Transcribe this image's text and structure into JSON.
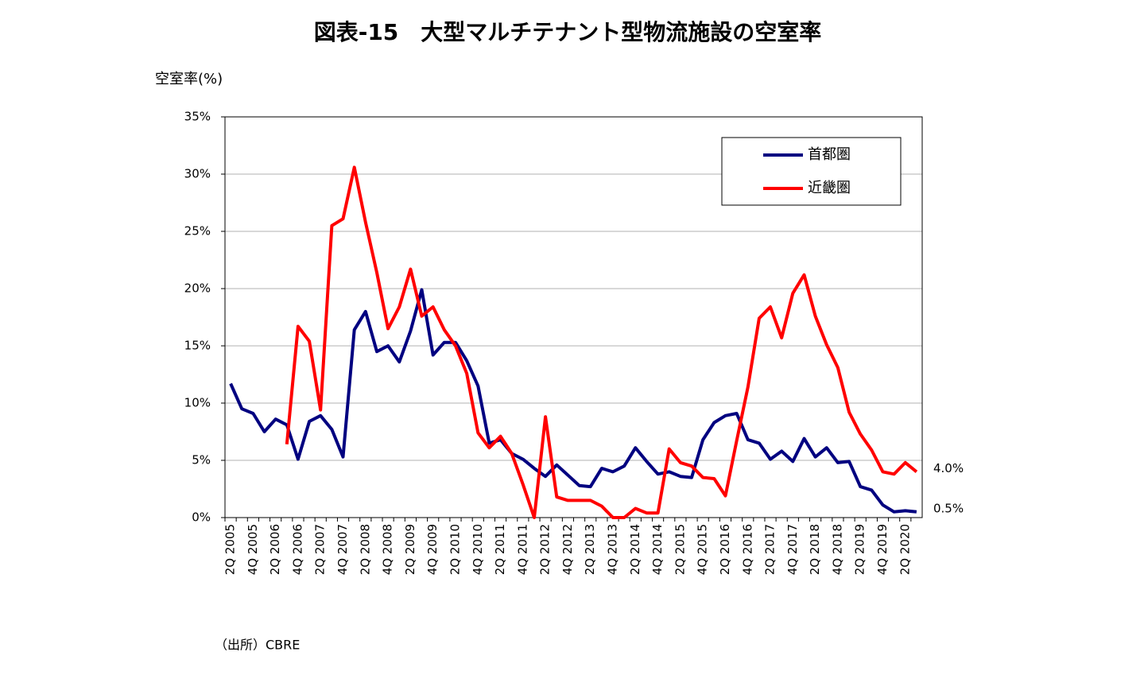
{
  "chart_data": {
    "type": "line",
    "title": "図表-15　大型マルチテナント型物流施設の空室率",
    "y_label": "空室率(%)",
    "source": "（出所）CBRE",
    "categories": [
      "2Q 2005",
      null,
      "4Q 2005",
      null,
      "2Q 2006",
      null,
      "4Q 2006",
      null,
      "2Q 2007",
      null,
      "4Q 2007",
      null,
      "2Q 2008",
      null,
      "4Q 2008",
      null,
      "2Q 2009",
      null,
      "4Q 2009",
      null,
      "2Q 2010",
      null,
      "4Q 2010",
      null,
      "2Q 2011",
      null,
      "4Q 2011",
      null,
      "2Q 2012",
      null,
      "4Q 2012",
      null,
      "2Q 2013",
      null,
      "4Q 2013",
      null,
      "2Q 2014",
      null,
      "4Q 2014",
      null,
      "2Q 2015",
      null,
      "4Q 2015",
      null,
      "2Q 2016",
      null,
      "4Q 2016",
      null,
      "2Q 2017",
      null,
      "4Q 2017",
      null,
      "2Q 2018",
      null,
      "4Q 2018",
      null,
      "2Q 2019",
      null,
      "4Q 2019",
      null,
      "2Q 2020",
      null
    ],
    "series": [
      {
        "name": "首都圏",
        "color": "#000080",
        "values": [
          11.7,
          9.5,
          9.1,
          7.5,
          8.6,
          8.1,
          5.1,
          8.4,
          8.9,
          7.7,
          5.3,
          16.4,
          18.0,
          14.5,
          15.0,
          13.6,
          16.3,
          19.9,
          14.2,
          15.3,
          15.3,
          13.7,
          11.5,
          6.5,
          6.8,
          5.6,
          5.1,
          4.3,
          3.6,
          4.6,
          3.7,
          2.8,
          2.7,
          4.3,
          4.0,
          4.5,
          6.1,
          4.9,
          3.8,
          4.0,
          3.6,
          3.5,
          6.8,
          8.3,
          8.9,
          9.1,
          6.8,
          6.5,
          5.1,
          5.8,
          4.9,
          6.9,
          5.3,
          6.1,
          4.8,
          4.9,
          2.7,
          2.4,
          1.1,
          0.5,
          0.6,
          0.5
        ],
        "value_labels": [
          null,
          null,
          null,
          null,
          null,
          null,
          null,
          null,
          null,
          null,
          null,
          null,
          null,
          null,
          null,
          null,
          null,
          null,
          null,
          null,
          null,
          null,
          null,
          null,
          null,
          null,
          null,
          null,
          null,
          null,
          null,
          null,
          null,
          null,
          null,
          null,
          null,
          null,
          null,
          null,
          null,
          null,
          null,
          null,
          null,
          null,
          null,
          null,
          null,
          null,
          null,
          null,
          null,
          null,
          null,
          null,
          null,
          null,
          null,
          null,
          null,
          "0.5%"
        ]
      },
      {
        "name": "近畿圏",
        "color": "#ff0000",
        "values": [
          null,
          null,
          null,
          null,
          null,
          6.4,
          16.7,
          15.4,
          9.4,
          25.5,
          26.1,
          30.6,
          25.8,
          21.4,
          16.5,
          18.4,
          21.7,
          17.6,
          18.4,
          16.4,
          15.0,
          12.6,
          7.4,
          6.1,
          7.1,
          5.6,
          2.9,
          0.0,
          8.8,
          1.8,
          1.5,
          1.5,
          1.5,
          1.0,
          0.0,
          0.0,
          0.8,
          0.4,
          0.4,
          6.0,
          4.8,
          4.5,
          3.5,
          3.4,
          1.9,
          6.7,
          11.4,
          17.4,
          18.4,
          15.7,
          19.6,
          21.2,
          17.6,
          15.1,
          13.1,
          9.2,
          7.3,
          5.9,
          4.0,
          3.8,
          4.8,
          4.0
        ],
        "value_labels": [
          null,
          null,
          null,
          null,
          null,
          null,
          null,
          null,
          null,
          null,
          null,
          null,
          null,
          null,
          null,
          null,
          null,
          null,
          null,
          null,
          null,
          null,
          null,
          null,
          null,
          null,
          null,
          null,
          null,
          null,
          null,
          null,
          null,
          null,
          null,
          null,
          null,
          null,
          null,
          null,
          null,
          null,
          null,
          null,
          null,
          null,
          null,
          null,
          null,
          null,
          null,
          null,
          null,
          null,
          null,
          null,
          null,
          null,
          null,
          null,
          null,
          "4.0%"
        ]
      }
    ],
    "ylim": [
      0,
      35
    ],
    "yticks": [
      {
        "value": 0,
        "label": "0%"
      },
      {
        "value": 5,
        "label": "5%"
      },
      {
        "value": 10,
        "label": "10%"
      },
      {
        "value": 15,
        "label": "15%"
      },
      {
        "value": 20,
        "label": "20%"
      },
      {
        "value": 25,
        "label": "25%"
      },
      {
        "value": 30,
        "label": "30%"
      },
      {
        "value": 35,
        "label": "35%"
      }
    ],
    "grid": true,
    "legend": "upper right"
  }
}
